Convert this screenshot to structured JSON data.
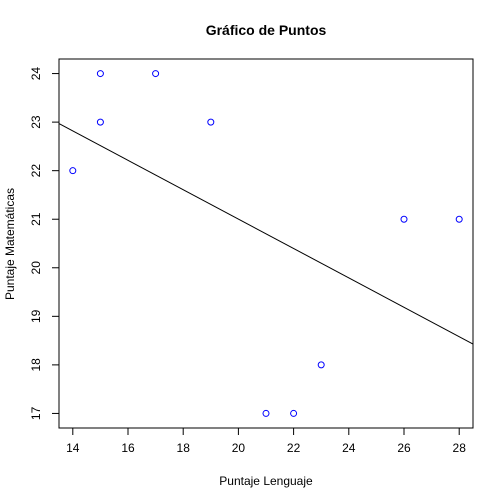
{
  "chart_data": {
    "type": "scatter",
    "title": "Gráfico de Puntos",
    "xlabel": "Puntaje Lenguaje",
    "ylabel": "Puntaje Matemáticas",
    "xlim": [
      13.5,
      28.5
    ],
    "ylim": [
      16.7,
      24.3
    ],
    "x_ticks": [
      "14",
      "16",
      "18",
      "20",
      "22",
      "24",
      "26",
      "28"
    ],
    "y_ticks": [
      "17",
      "18",
      "19",
      "20",
      "21",
      "22",
      "23",
      "24"
    ],
    "grid": false,
    "point_color": "#0000ff",
    "line_color": "#000000",
    "points": [
      {
        "x": 14,
        "y": 22
      },
      {
        "x": 15,
        "y": 24
      },
      {
        "x": 15,
        "y": 23
      },
      {
        "x": 17,
        "y": 24
      },
      {
        "x": 19,
        "y": 23
      },
      {
        "x": 21,
        "y": 17
      },
      {
        "x": 22,
        "y": 17
      },
      {
        "x": 23,
        "y": 18
      },
      {
        "x": 26,
        "y": 21
      },
      {
        "x": 28,
        "y": 21
      }
    ],
    "fit_line": {
      "x": [
        13.5,
        28.5
      ],
      "y": [
        22.97,
        18.43
      ]
    }
  }
}
